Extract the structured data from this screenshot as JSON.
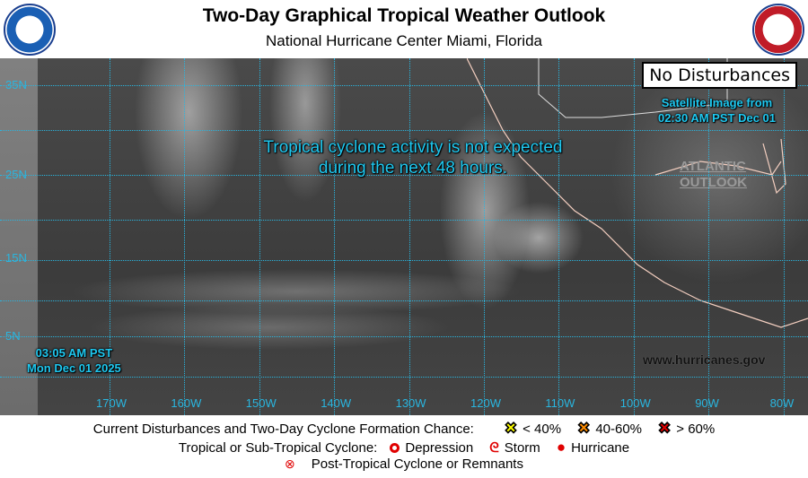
{
  "header": {
    "title": "Two-Day Graphical Tropical Weather Outlook",
    "subtitle": "National Hurricane Center  Miami, Florida",
    "left_logo": "NOAA",
    "right_logo": "NATIONAL WEATHER SERVICE"
  },
  "map": {
    "status_box": "No Disturbances",
    "satellite_line1": "Satellite Image from",
    "satellite_line2": "02:30 AM PST Dec 01",
    "message_line1": "Tropical cyclone activity is not expected",
    "message_line2": "during the next 48 hours.",
    "atlantic_line1": "ATLANTIC",
    "atlantic_line2": "OUTLOOK",
    "issued_line1": "03:05 AM PST",
    "issued_line2": "Mon Dec 01 2025",
    "website": "www.hurricanes.gov",
    "latitudes": [
      "35N",
      "25N",
      "15N",
      "5N"
    ],
    "longitudes": [
      "170W",
      "160W",
      "150W",
      "140W",
      "130W",
      "120W",
      "110W",
      "100W",
      "90W",
      "80W"
    ],
    "grid_color": "#29b6e0"
  },
  "legend": {
    "row1_label": "Current Disturbances and Two-Day Cyclone Formation Chance:",
    "low": "< 40%",
    "medium": "40-60%",
    "high": "> 60%",
    "low_color": "#ffff00",
    "medium_color": "#ff8c00",
    "high_color": "#e00000",
    "row2_label": "Tropical or Sub-Tropical Cyclone:",
    "depression": "Depression",
    "storm": "Storm",
    "hurricane": "Hurricane",
    "post_tropical": "Post-Tropical Cyclone or Remnants"
  }
}
